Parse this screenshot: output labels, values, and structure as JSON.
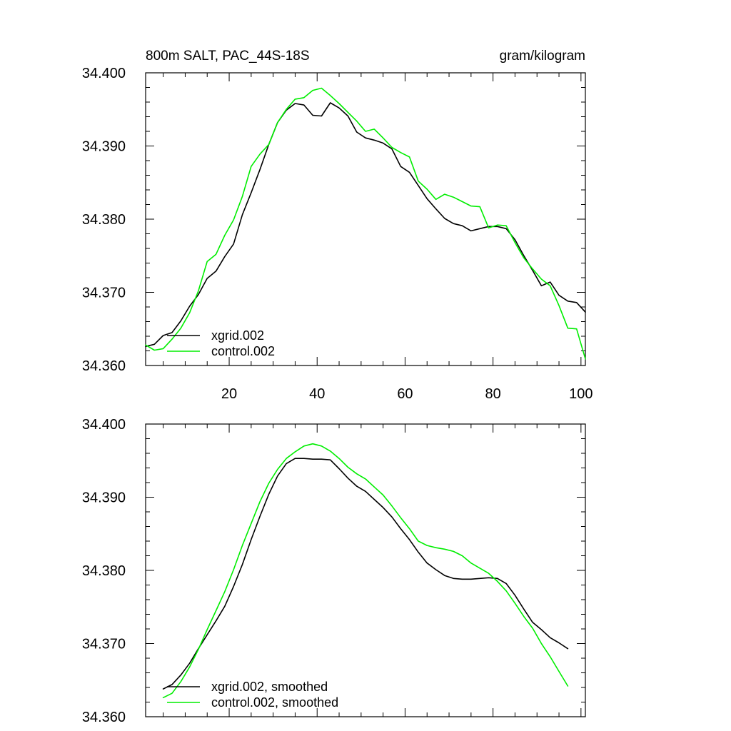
{
  "chart_data": [
    {
      "type": "line",
      "title": "800m SALT, PAC_44S-18S",
      "units": "gram/kilogram",
      "xlim": [
        1,
        101
      ],
      "ylim": [
        34.36,
        34.4
      ],
      "xticks": [
        20,
        40,
        60,
        80,
        100
      ],
      "yticks": [
        34.36,
        34.37,
        34.38,
        34.39,
        34.4
      ],
      "ytick_labels": [
        "34.360",
        "34.370",
        "34.380",
        "34.390",
        "34.400"
      ],
      "xtick_labels": [
        "20",
        "40",
        "60",
        "80",
        "100"
      ],
      "x": [
        1,
        3,
        5,
        7,
        9,
        11,
        13,
        15,
        17,
        19,
        21,
        23,
        25,
        27,
        29,
        31,
        33,
        35,
        37,
        39,
        41,
        43,
        45,
        47,
        49,
        51,
        53,
        55,
        57,
        59,
        61,
        63,
        65,
        67,
        69,
        71,
        73,
        75,
        77,
        79,
        81,
        83,
        85,
        87,
        89,
        91,
        93,
        95,
        97,
        99,
        101
      ],
      "series": [
        {
          "name": "xgrid.002",
          "color": "#000000",
          "values": [
            34.3626,
            34.3629,
            34.3641,
            34.3645,
            34.3661,
            34.3681,
            34.3697,
            34.3719,
            34.3729,
            34.3749,
            34.3766,
            34.3806,
            34.3836,
            34.3868,
            34.3902,
            34.3932,
            34.3949,
            34.3958,
            34.3956,
            34.3942,
            34.3941,
            34.3959,
            34.3952,
            34.3941,
            34.3919,
            34.3911,
            34.3908,
            34.3904,
            34.3896,
            34.3872,
            34.3864,
            34.3846,
            34.3828,
            34.3814,
            34.3801,
            34.3794,
            34.3791,
            34.3784,
            34.3787,
            34.379,
            34.379,
            34.3787,
            34.3772,
            34.375,
            34.373,
            34.3709,
            34.3714,
            34.3696,
            34.3688,
            34.3686,
            34.3673
          ]
        },
        {
          "name": "control.002",
          "color": "#00ee00",
          "values": [
            34.3628,
            34.3621,
            34.3623,
            34.3636,
            34.3651,
            34.3672,
            34.3702,
            34.3742,
            34.3752,
            34.3778,
            34.3799,
            34.3831,
            34.3872,
            34.3889,
            34.3902,
            34.3932,
            34.395,
            34.3964,
            34.3966,
            34.3976,
            34.3979,
            34.3969,
            34.3958,
            34.3946,
            34.3934,
            34.392,
            34.3923,
            34.3911,
            34.3898,
            34.3891,
            34.3885,
            34.3852,
            34.3841,
            34.3827,
            34.3834,
            34.383,
            34.3824,
            34.3818,
            34.3817,
            34.3788,
            34.3792,
            34.3791,
            34.3768,
            34.3747,
            34.3732,
            34.3718,
            34.3709,
            34.3682,
            34.3651,
            34.365,
            34.3609
          ]
        }
      ],
      "legend": [
        "xgrid.002",
        "control.002"
      ],
      "legend_position": "bottom-left"
    },
    {
      "type": "line",
      "title": "",
      "xlim": [
        1,
        101
      ],
      "ylim": [
        34.36,
        34.4
      ],
      "xticks": [
        20,
        40,
        60,
        80,
        100
      ],
      "yticks": [
        34.36,
        34.37,
        34.38,
        34.39,
        34.4
      ],
      "ytick_labels": [
        "34.360",
        "34.370",
        "34.380",
        "34.390",
        "34.400"
      ],
      "xtick_labels": [],
      "x": [
        5,
        7,
        9,
        11,
        13,
        15,
        17,
        19,
        21,
        23,
        25,
        27,
        29,
        31,
        33,
        35,
        37,
        39,
        41,
        43,
        45,
        47,
        49,
        51,
        53,
        55,
        57,
        59,
        61,
        63,
        65,
        67,
        69,
        71,
        73,
        75,
        77,
        79,
        81,
        83,
        85,
        87,
        89,
        91,
        93,
        95,
        97
      ],
      "series": [
        {
          "name": "xgrid.002, smoothed",
          "color": "#000000",
          "values": [
            34.3638,
            34.3644,
            34.3657,
            34.3673,
            34.3693,
            34.3712,
            34.3731,
            34.3751,
            34.3778,
            34.3808,
            34.3842,
            34.3874,
            34.3904,
            34.3929,
            34.3946,
            34.3953,
            34.3953,
            34.3952,
            34.3952,
            34.3951,
            34.3939,
            34.3926,
            34.3915,
            34.3908,
            34.3897,
            34.3886,
            34.3873,
            34.3857,
            34.3842,
            34.3825,
            34.381,
            34.3801,
            34.3793,
            34.3789,
            34.3788,
            34.3788,
            34.3789,
            34.379,
            34.3789,
            34.3782,
            34.3766,
            34.3747,
            34.3729,
            34.3719,
            34.3708,
            34.3701,
            34.3693
          ]
        },
        {
          "name": "control.002, smoothed",
          "color": "#00ee00",
          "values": [
            34.3626,
            34.3632,
            34.3648,
            34.3668,
            34.3692,
            34.3719,
            34.3745,
            34.3771,
            34.3801,
            34.3834,
            34.3864,
            34.3894,
            34.3919,
            34.3938,
            34.3953,
            34.3962,
            34.397,
            34.3973,
            34.397,
            34.3963,
            34.3953,
            34.3941,
            34.3932,
            34.3925,
            34.3914,
            34.3903,
            34.3888,
            34.3872,
            34.3857,
            34.384,
            34.3834,
            34.3831,
            34.3829,
            34.3826,
            34.382,
            34.381,
            34.3803,
            34.3796,
            34.3785,
            34.3772,
            34.3755,
            34.3737,
            34.3721,
            34.37,
            34.3682,
            34.3662,
            34.3642
          ]
        }
      ],
      "legend": [
        "xgrid.002, smoothed",
        "control.002, smoothed"
      ],
      "legend_position": "bottom-left"
    }
  ]
}
